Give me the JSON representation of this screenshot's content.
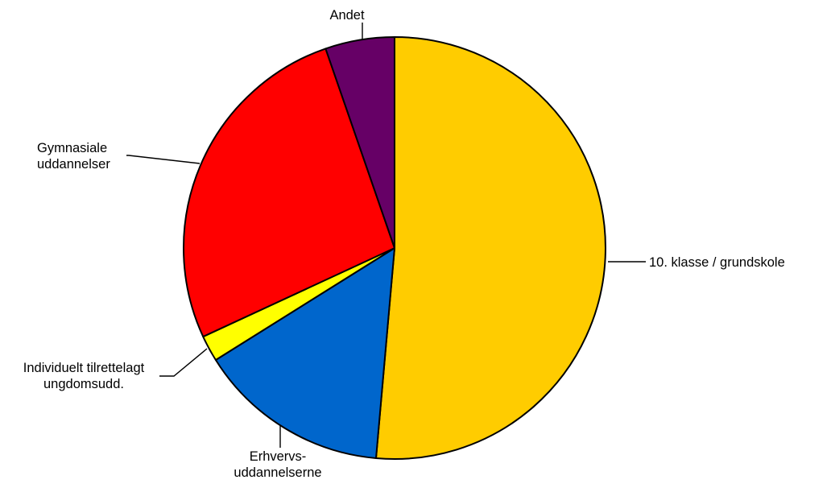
{
  "chart_data": {
    "type": "pie",
    "start_angle_deg": 0,
    "direction": "clockwise",
    "slices": [
      {
        "label": "10. klasse / grundskole",
        "value": 51.4,
        "color": "#FFCC00"
      },
      {
        "label": "Erhvervs-\nuddannelserne",
        "value": 14.7,
        "color": "#0066CC"
      },
      {
        "label": "Individuelt tilrettelagt\nungdomsudd.",
        "value": 2.0,
        "color": "#FFFF00"
      },
      {
        "label": "Gymnasiale\nuddannelser",
        "value": 26.6,
        "color": "#FF0000"
      },
      {
        "label": "Andet",
        "value": 5.3,
        "color": "#660066"
      }
    ]
  }
}
